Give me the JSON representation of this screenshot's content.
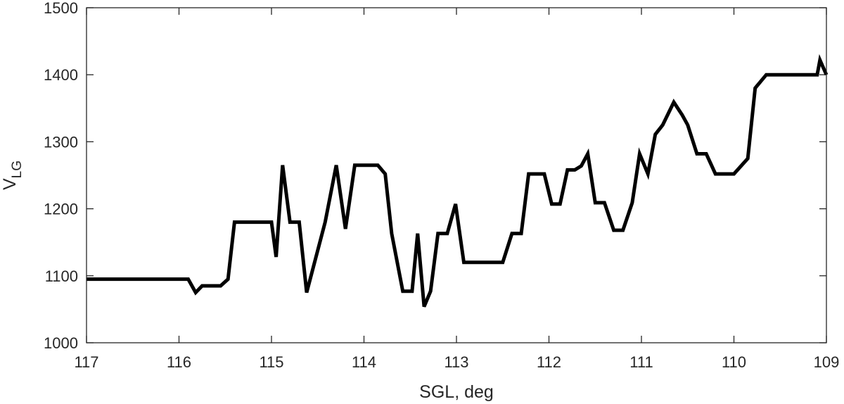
{
  "chart_data": {
    "type": "line",
    "xlabel": "SGL, deg",
    "ylabel_main": "V",
    "ylabel_sub": "LG",
    "xlim": [
      117,
      109
    ],
    "ylim": [
      1000,
      1500
    ],
    "x_reversed": true,
    "xticks": [
      117,
      116,
      115,
      114,
      113,
      112,
      111,
      110,
      109
    ],
    "yticks": [
      1000,
      1100,
      1200,
      1300,
      1400,
      1500
    ],
    "grid": false,
    "line_color": "#000000",
    "series": [
      {
        "x": [
          117,
          115.9,
          115.82,
          115.75,
          115.55,
          115.47,
          115.4,
          115.0,
          114.95,
          114.88,
          114.8,
          114.7,
          114.62,
          114.42,
          114.3,
          114.2,
          114.1,
          114.0,
          113.85,
          113.77,
          113.7,
          113.58,
          113.48,
          113.42,
          113.35,
          113.28,
          113.2,
          113.1,
          113.01,
          112.92,
          112.5,
          112.4,
          112.3,
          112.22,
          112.05,
          111.97,
          111.88,
          111.8,
          111.72,
          111.65,
          111.58,
          111.5,
          111.4,
          111.3,
          111.2,
          111.1,
          111.02,
          110.93,
          110.85,
          110.77,
          110.65,
          110.56,
          110.5,
          110.4,
          110.3,
          110.2,
          110.0,
          109.85,
          109.77,
          109.65,
          109.55,
          109.1,
          109.07,
          109.0
        ],
        "y": [
          1095,
          1095,
          1075,
          1085,
          1085,
          1095,
          1180,
          1180,
          1128,
          1265,
          1180,
          1180,
          1075,
          1180,
          1265,
          1170,
          1265,
          1265,
          1265,
          1252,
          1163,
          1077,
          1077,
          1163,
          1054,
          1077,
          1163,
          1163,
          1207,
          1120,
          1120,
          1163,
          1163,
          1252,
          1252,
          1207,
          1207,
          1258,
          1258,
          1264,
          1282,
          1209,
          1209,
          1168,
          1168,
          1209,
          1282,
          1252,
          1311,
          1325,
          1359,
          1340,
          1325,
          1282,
          1282,
          1252,
          1252,
          1275,
          1380,
          1400,
          1400,
          1400,
          1422,
          1400
        ]
      }
    ]
  }
}
